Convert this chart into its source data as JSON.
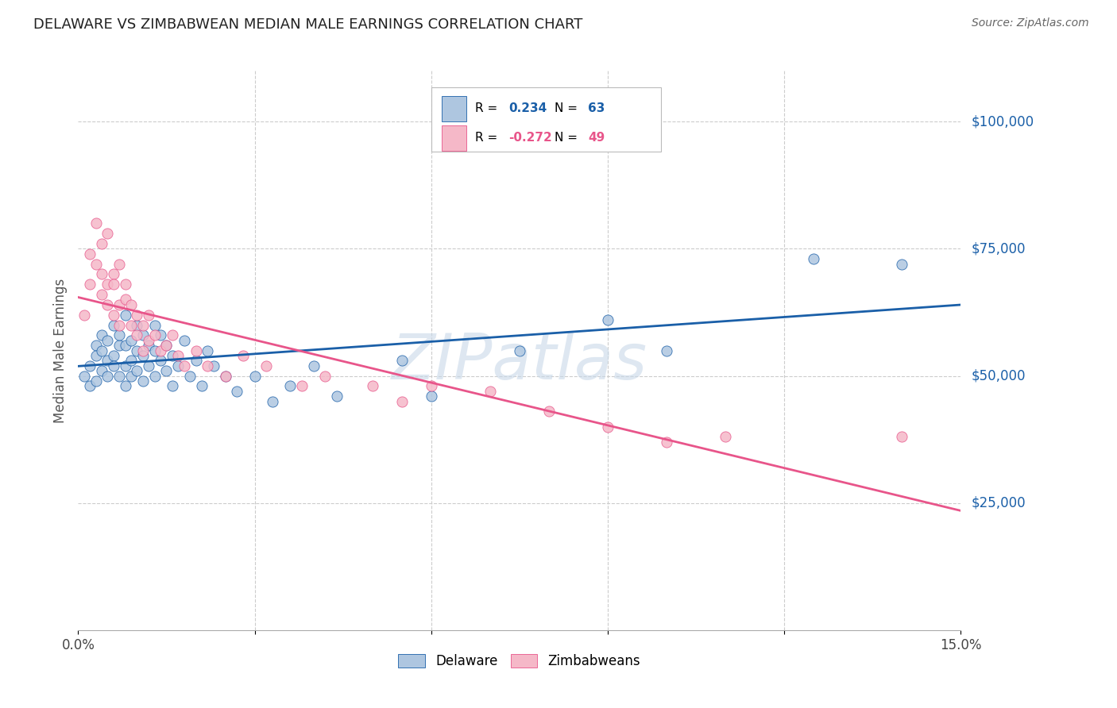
{
  "title": "DELAWARE VS ZIMBABWEAN MEDIAN MALE EARNINGS CORRELATION CHART",
  "source": "Source: ZipAtlas.com",
  "ylabel": "Median Male Earnings",
  "yticks": [
    25000,
    50000,
    75000,
    100000
  ],
  "ytick_labels": [
    "$25,000",
    "$50,000",
    "$75,000",
    "$100,000"
  ],
  "xlim": [
    0.0,
    0.15
  ],
  "ylim": [
    0,
    110000
  ],
  "legend_labels": [
    "Delaware",
    "Zimbabweans"
  ],
  "blue_color": "#aec6e0",
  "pink_color": "#f5b8c8",
  "line_blue": "#1a5fa8",
  "line_pink": "#e8558a",
  "watermark": "ZIPatlas",
  "watermark_color": "#c8d8e8",
  "blue_x": [
    0.001,
    0.002,
    0.002,
    0.003,
    0.003,
    0.003,
    0.004,
    0.004,
    0.004,
    0.005,
    0.005,
    0.005,
    0.006,
    0.006,
    0.006,
    0.007,
    0.007,
    0.007,
    0.008,
    0.008,
    0.008,
    0.008,
    0.009,
    0.009,
    0.009,
    0.01,
    0.01,
    0.01,
    0.011,
    0.011,
    0.011,
    0.012,
    0.012,
    0.013,
    0.013,
    0.013,
    0.014,
    0.014,
    0.015,
    0.015,
    0.016,
    0.016,
    0.017,
    0.018,
    0.019,
    0.02,
    0.021,
    0.022,
    0.023,
    0.025,
    0.027,
    0.03,
    0.033,
    0.036,
    0.04,
    0.044,
    0.055,
    0.06,
    0.075,
    0.09,
    0.1,
    0.125,
    0.14
  ],
  "blue_y": [
    50000,
    52000,
    48000,
    56000,
    54000,
    49000,
    55000,
    51000,
    58000,
    53000,
    50000,
    57000,
    60000,
    54000,
    52000,
    56000,
    58000,
    50000,
    62000,
    56000,
    52000,
    48000,
    57000,
    53000,
    50000,
    60000,
    55000,
    51000,
    58000,
    54000,
    49000,
    56000,
    52000,
    60000,
    55000,
    50000,
    58000,
    53000,
    56000,
    51000,
    54000,
    48000,
    52000,
    57000,
    50000,
    53000,
    48000,
    55000,
    52000,
    50000,
    47000,
    50000,
    45000,
    48000,
    52000,
    46000,
    53000,
    46000,
    55000,
    61000,
    55000,
    73000,
    72000
  ],
  "pink_x": [
    0.001,
    0.002,
    0.002,
    0.003,
    0.003,
    0.004,
    0.004,
    0.004,
    0.005,
    0.005,
    0.005,
    0.006,
    0.006,
    0.006,
    0.007,
    0.007,
    0.007,
    0.008,
    0.008,
    0.009,
    0.009,
    0.01,
    0.01,
    0.011,
    0.011,
    0.012,
    0.012,
    0.013,
    0.014,
    0.015,
    0.016,
    0.017,
    0.018,
    0.02,
    0.022,
    0.025,
    0.028,
    0.032,
    0.038,
    0.042,
    0.05,
    0.055,
    0.06,
    0.07,
    0.08,
    0.09,
    0.1,
    0.11,
    0.14
  ],
  "pink_y": [
    62000,
    74000,
    68000,
    80000,
    72000,
    76000,
    66000,
    70000,
    78000,
    68000,
    64000,
    70000,
    62000,
    68000,
    64000,
    72000,
    60000,
    65000,
    68000,
    60000,
    64000,
    62000,
    58000,
    60000,
    55000,
    57000,
    62000,
    58000,
    55000,
    56000,
    58000,
    54000,
    52000,
    55000,
    52000,
    50000,
    54000,
    52000,
    48000,
    50000,
    48000,
    45000,
    48000,
    47000,
    43000,
    40000,
    37000,
    38000,
    38000
  ]
}
